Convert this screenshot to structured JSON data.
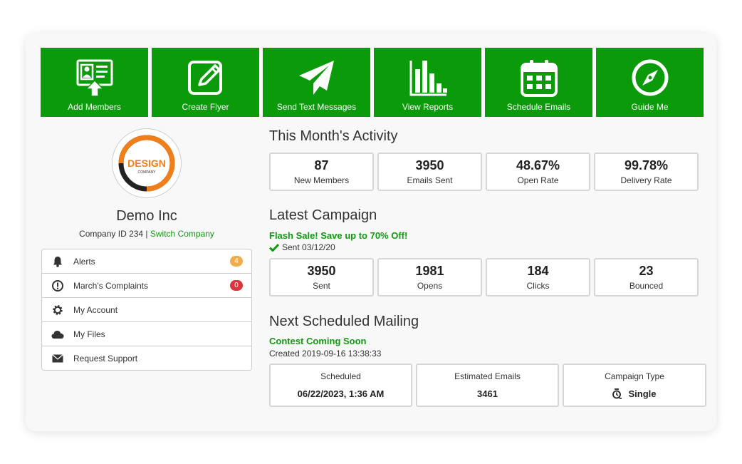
{
  "tiles": [
    {
      "label": "Add Members",
      "icon": "add-members-icon"
    },
    {
      "label": "Create Flyer",
      "icon": "edit-flyer-icon"
    },
    {
      "label": "Send Text Messages",
      "icon": "paper-plane-icon"
    },
    {
      "label": "View Reports",
      "icon": "bar-chart-icon"
    },
    {
      "label": "Schedule Emails",
      "icon": "calendar-icon"
    },
    {
      "label": "Guide Me",
      "icon": "compass-icon"
    }
  ],
  "company": {
    "logo_text": "DESIGN",
    "logo_subtext": "COMPANY",
    "name": "Demo Inc",
    "id_text": "Company ID 234 |",
    "switch_label": "Switch Company"
  },
  "menu": [
    {
      "label": "Alerts",
      "icon": "bell-icon",
      "badge": "4",
      "badge_color": "#f0ad4e"
    },
    {
      "label": "March's Complaints",
      "icon": "exclamation-icon",
      "badge": "0",
      "badge_color": "#d9363e"
    },
    {
      "label": "My Account",
      "icon": "gear-icon"
    },
    {
      "label": "My Files",
      "icon": "cloud-icon"
    },
    {
      "label": "Request Support",
      "icon": "envelope-icon"
    }
  ],
  "activity": {
    "title": "This Month's Activity",
    "stats": [
      {
        "value": "87",
        "label": "New Members"
      },
      {
        "value": "3950",
        "label": "Emails Sent"
      },
      {
        "value": "48.67%",
        "label": "Open Rate"
      },
      {
        "value": "99.78%",
        "label": "Delivery Rate"
      }
    ]
  },
  "campaign": {
    "title": "Latest Campaign",
    "name": "Flash Sale! Save up to 70% Off!",
    "sent": "Sent 03/12/20",
    "stats": [
      {
        "value": "3950",
        "label": "Sent"
      },
      {
        "value": "1981",
        "label": "Opens"
      },
      {
        "value": "184",
        "label": "Clicks"
      },
      {
        "value": "23",
        "label": "Bounced"
      }
    ]
  },
  "next_mailing": {
    "title": "Next Scheduled Mailing",
    "name": "Contest Coming Soon",
    "created": "Created 2019-09-16 13:38:33",
    "scheduled_label": "Scheduled",
    "scheduled_value": "06/22/2023, 1:36 AM",
    "estimated_label": "Estimated Emails",
    "estimated_value": "3461",
    "type_label": "Campaign Type",
    "type_value": "Single",
    "type_icon": "single-send-icon"
  },
  "colors": {
    "accent": "#0a9a0a",
    "link": "#119911"
  }
}
